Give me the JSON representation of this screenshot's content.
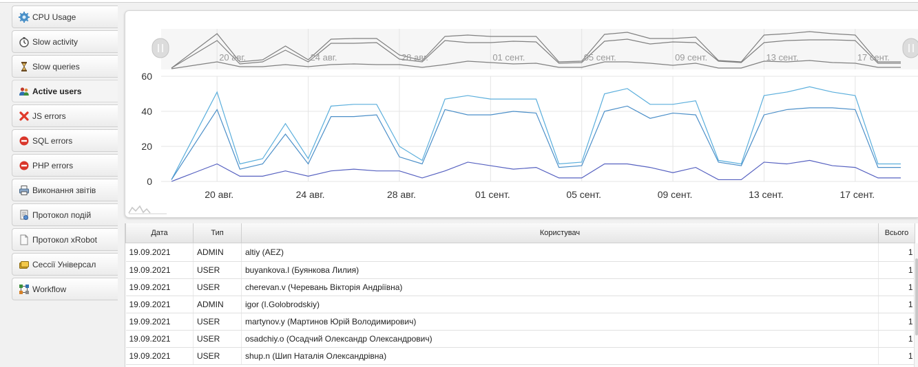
{
  "sidebar": {
    "items": [
      {
        "label": "CPU Usage",
        "icon": "cpu-gear-icon"
      },
      {
        "label": "Slow activity",
        "icon": "stopwatch-icon"
      },
      {
        "label": "Slow queries",
        "icon": "hourglass-icon"
      },
      {
        "label": "Active users",
        "icon": "users-icon"
      },
      {
        "label": "JS errors",
        "icon": "red-x-icon"
      },
      {
        "label": "SQL errors",
        "icon": "red-minus-circle-icon"
      },
      {
        "label": "PHP errors",
        "icon": "red-minus-circle-icon"
      },
      {
        "label": "Виконання звітів",
        "icon": "printer-icon"
      },
      {
        "label": "Протокол подій",
        "icon": "log-document-icon"
      },
      {
        "label": "Протокол xRobot",
        "icon": "blank-document-icon"
      },
      {
        "label": "Сессії Універсал",
        "icon": "stacked-cards-icon"
      },
      {
        "label": "Workflow",
        "icon": "workflow-icon"
      }
    ],
    "active_index": 3
  },
  "chart_data": {
    "type": "line",
    "x": [
      "18.08",
      "19.08",
      "20.08",
      "21.08",
      "22.08",
      "23.08",
      "24.08",
      "25.08",
      "26.08",
      "27.08",
      "28.08",
      "29.08",
      "30.08",
      "31.08",
      "01.09",
      "02.09",
      "03.09",
      "04.09",
      "05.09",
      "06.09",
      "07.09",
      "08.09",
      "09.09",
      "10.09",
      "11.09",
      "12.09",
      "13.09",
      "14.09",
      "15.09",
      "16.09",
      "17.09",
      "18.09",
      "19.09"
    ],
    "xtick_labels": [
      "20 авг.",
      "24 авг.",
      "28 авг.",
      "01 сент.",
      "05 сент.",
      "09 сент.",
      "13 сент.",
      "17 сент."
    ],
    "xtick_dates": [
      "20.08",
      "24.08",
      "28.08",
      "01.09",
      "05.09",
      "09.09",
      "13.09",
      "17.09"
    ],
    "series": [
      {
        "color": "#5aaedc",
        "values": [
          1,
          26,
          51,
          10,
          13,
          33,
          13,
          43,
          44,
          44,
          20,
          12,
          47,
          49,
          47,
          47,
          47,
          10,
          11,
          50,
          53,
          44,
          44,
          46,
          12,
          10,
          49,
          51,
          54,
          51,
          49,
          10,
          10
        ]
      },
      {
        "color": "#4a8ec8",
        "values": [
          1,
          21,
          41,
          7,
          10,
          27,
          10,
          37,
          37,
          38,
          14,
          10,
          41,
          38,
          38,
          40,
          39,
          8,
          9,
          40,
          43,
          36,
          39,
          38,
          11,
          9,
          38,
          41,
          42,
          42,
          41,
          8,
          8
        ]
      },
      {
        "color": "#5560c0",
        "values": [
          0,
          5,
          10,
          3,
          3,
          6,
          3,
          6,
          7,
          6,
          6,
          2,
          6,
          11,
          9,
          7,
          8,
          2,
          2,
          10,
          10,
          8,
          5,
          8,
          1,
          1,
          11,
          10,
          12,
          9,
          8,
          2,
          2
        ]
      }
    ],
    "ylim": [
      0,
      60
    ],
    "yticks": [
      0,
      20,
      40,
      60
    ],
    "grid": true,
    "navigator": true
  },
  "table": {
    "headers": {
      "date": "Дата",
      "type": "Тип",
      "user": "Користувач",
      "total": "Всього"
    },
    "rows": [
      {
        "date": "19.09.2021",
        "type": "ADMIN",
        "user": "altiy (AEZ)",
        "total": "1"
      },
      {
        "date": "19.09.2021",
        "type": "USER",
        "user": "buyankova.l (Буянкова Лилия)",
        "total": "1"
      },
      {
        "date": "19.09.2021",
        "type": "USER",
        "user": "cherevan.v (Черевань Вікторія Андріївна)",
        "total": "1"
      },
      {
        "date": "19.09.2021",
        "type": "ADMIN",
        "user": "igor (I.Golobrodskiy)",
        "total": "1"
      },
      {
        "date": "19.09.2021",
        "type": "USER",
        "user": "martynov.y (Мартинов Юрій Володимирович)",
        "total": "1"
      },
      {
        "date": "19.09.2021",
        "type": "USER",
        "user": "osadchiy.o (Осадчий Олександр Олександрович)",
        "total": "1"
      },
      {
        "date": "19.09.2021",
        "type": "USER",
        "user": "shup.n (Шип Наталія Олександрівна)",
        "total": "1"
      }
    ]
  }
}
